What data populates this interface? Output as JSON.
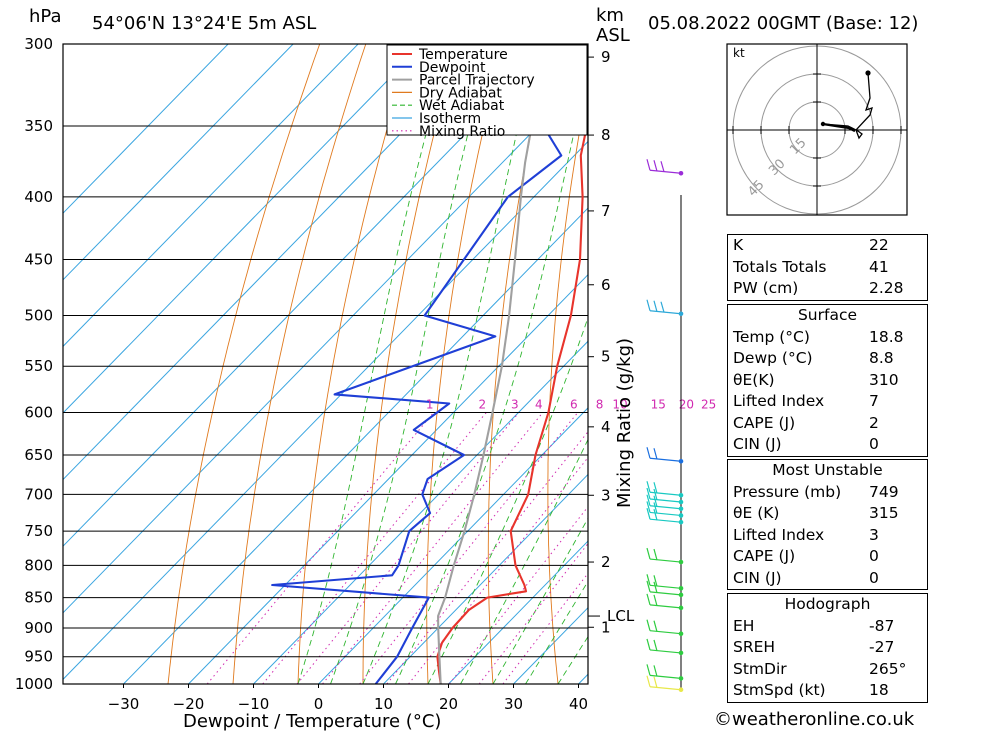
{
  "header": {
    "pressure_unit": "hPa",
    "location": "54°06'N  13°24'E  5m  ASL",
    "height_unit_top": "km",
    "height_unit_bottom": "ASL",
    "datetime": "05.08.2022  00GMT  (Base: 12)"
  },
  "chart_data": {
    "type": "line",
    "title": "54°06'N  13°24'E  5m  ASL",
    "xlabel": "Dewpoint / Temperature (°C)",
    "ylabel": "hPa",
    "secondary_ylabel": "Mixing Ratio (g/kg)",
    "xlim": [
      -40,
      40
    ],
    "ylim": [
      1000,
      300
    ],
    "x_ticks": [
      -30,
      -20,
      -10,
      0,
      10,
      20,
      30,
      40
    ],
    "y_ticks": [
      300,
      350,
      400,
      450,
      500,
      550,
      600,
      650,
      700,
      750,
      800,
      850,
      900,
      950,
      1000
    ],
    "height_ticks_km": [
      1,
      2,
      3,
      4,
      5,
      6,
      7,
      8,
      9
    ],
    "lcl_label": "LCL",
    "mixing_ratio_labels": [
      "1",
      "2",
      "3",
      "4",
      "6",
      "8",
      "10",
      "15",
      "20",
      "25"
    ],
    "legend": {
      "position": "top-right of plot",
      "entries": [
        {
          "name": "Temperature",
          "color": "#e8342c",
          "style": "solid"
        },
        {
          "name": "Dewpoint",
          "color": "#1f3fd6",
          "style": "solid"
        },
        {
          "name": "Parcel Trajectory",
          "color": "#a0a0a0",
          "style": "solid"
        },
        {
          "name": "Dry Adiabat",
          "color": "#e07a1f",
          "style": "solid"
        },
        {
          "name": "Wet Adiabat",
          "color": "#2fb52f",
          "style": "dashed"
        },
        {
          "name": "Isotherm",
          "color": "#3aa5e0",
          "style": "solid"
        },
        {
          "name": "Mixing Ratio",
          "color": "#d12ab0",
          "style": "dotted"
        }
      ]
    },
    "series": [
      {
        "name": "Temperature",
        "color": "#e8342c",
        "p": [
          1000,
          975,
          950,
          925,
          900,
          870,
          850,
          840,
          830,
          800,
          750,
          700,
          650,
          600,
          550,
          500,
          450,
          400,
          370,
          350,
          300
        ],
        "t": [
          18.8,
          16.5,
          14.2,
          12.8,
          12.2,
          12.0,
          13.0,
          18.0,
          16.8,
          12.5,
          6.6,
          3.8,
          -1.0,
          -5.4,
          -11.0,
          -16.5,
          -23.5,
          -32.5,
          -39.0,
          -42.5,
          -51.0
        ]
      },
      {
        "name": "Dewpoint",
        "color": "#1f3fd6",
        "p": [
          1000,
          950,
          900,
          850,
          830,
          815,
          800,
          750,
          725,
          700,
          680,
          650,
          620,
          590,
          580,
          520,
          500,
          400,
          370,
          310,
          300
        ],
        "t": [
          8.8,
          8.0,
          6.0,
          4.0,
          -22.0,
          -5.0,
          -5.5,
          -9.0,
          -8.5,
          -12.5,
          -14.0,
          -12.0,
          -23.5,
          -22.0,
          -41.0,
          -25.0,
          -39.0,
          -44.0,
          -42.0,
          -65.0,
          -64.0
        ]
      },
      {
        "name": "Parcel Trajectory",
        "color": "#a0a0a0",
        "p": [
          1000,
          950,
          900,
          880,
          850,
          800,
          750,
          700,
          650,
          600,
          550,
          500,
          450,
          400,
          375,
          350,
          300
        ],
        "t": [
          18.8,
          14.5,
          10.0,
          8.2,
          6.5,
          3.0,
          -0.5,
          -4.5,
          -9.0,
          -14.0,
          -19.5,
          -26.0,
          -33.5,
          -42.0,
          -46.5,
          -51.0,
          -61.0
        ]
      }
    ],
    "isotherms_degC": [
      -110,
      -100,
      -90,
      -80,
      -70,
      -60,
      -50,
      -40,
      -30,
      -20,
      -10,
      0,
      10,
      20,
      30,
      40
    ],
    "dry_adiabats_thetaK": [
      250,
      260,
      270,
      280,
      290,
      300,
      310,
      320,
      330,
      340,
      350,
      360,
      370,
      380,
      390,
      400,
      410,
      420,
      430
    ],
    "wet_adiabats_thetaK": [
      270,
      275,
      280,
      285,
      290,
      295,
      300,
      305,
      310,
      315,
      320,
      325,
      330
    ],
    "mixing_ratios_gkg": [
      1,
      2,
      3,
      4,
      6,
      8,
      10,
      15,
      20,
      25
    ],
    "wind_profile_km": [
      0.02,
      0.2,
      0.6,
      0.9,
      1.3,
      1.5,
      1.6,
      2.0,
      2.6,
      2.7,
      2.8,
      2.9,
      3.0,
      3.5,
      5.6,
      7.5
    ]
  },
  "hodograph": {
    "unit": "kt",
    "rings": [
      "15",
      "30",
      "45"
    ]
  },
  "indices": [
    {
      "label": "K",
      "value": "22"
    },
    {
      "label": "Totals Totals",
      "value": "41"
    },
    {
      "label": "PW (cm)",
      "value": "2.28"
    }
  ],
  "surface": {
    "title": "Surface",
    "rows": [
      {
        "label": "Temp (°C)",
        "value": "18.8"
      },
      {
        "label": "Dewp (°C)",
        "value": "8.8"
      },
      {
        "label": "θE(K)",
        "value": "310"
      },
      {
        "label": "Lifted Index",
        "value": "7"
      },
      {
        "label": "CAPE (J)",
        "value": "2"
      },
      {
        "label": "CIN (J)",
        "value": "0"
      }
    ]
  },
  "most_unstable": {
    "title": "Most Unstable",
    "rows": [
      {
        "label": "Pressure (mb)",
        "value": "749"
      },
      {
        "label": "θE (K)",
        "value": "315"
      },
      {
        "label": "Lifted Index",
        "value": "3"
      },
      {
        "label": "CAPE (J)",
        "value": "0"
      },
      {
        "label": "CIN (J)",
        "value": "0"
      }
    ]
  },
  "hodograph_params": {
    "title": "Hodograph",
    "rows": [
      {
        "label": "EH",
        "value": "-87"
      },
      {
        "label": "SREH",
        "value": "-27"
      },
      {
        "label": "StmDir",
        "value": "265°"
      },
      {
        "label": "StmSpd (kt)",
        "value": "18"
      }
    ]
  },
  "credit": "©weatheronline.co.uk"
}
